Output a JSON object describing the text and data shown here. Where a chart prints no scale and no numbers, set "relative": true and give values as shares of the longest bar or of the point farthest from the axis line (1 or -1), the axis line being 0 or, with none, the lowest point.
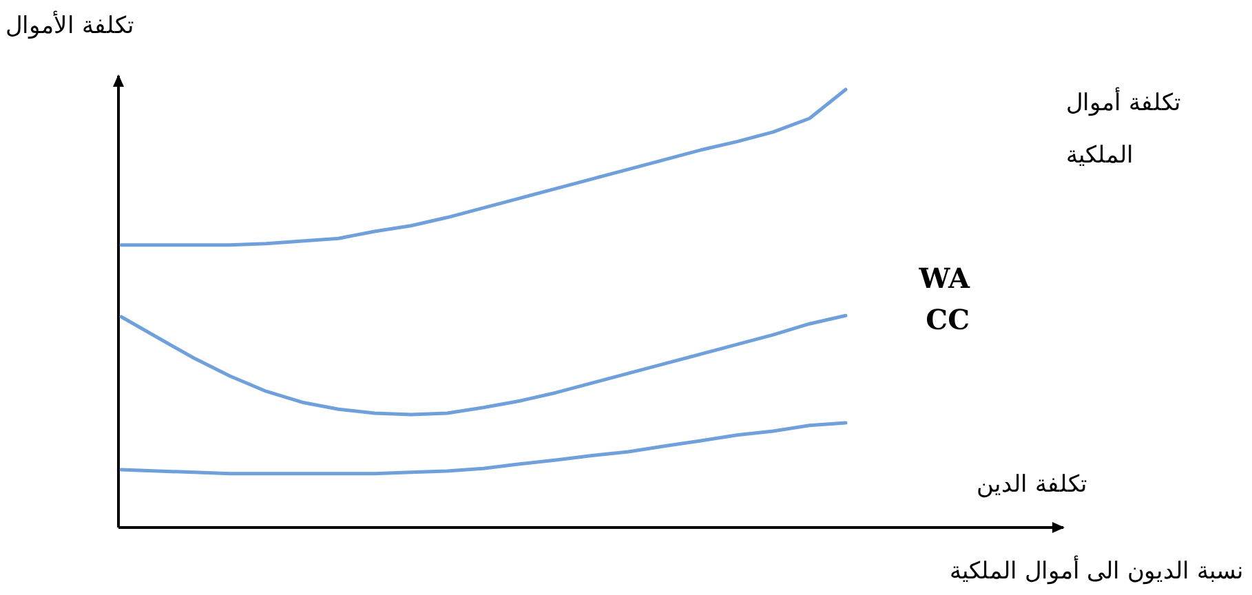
{
  "chart_data": {
    "type": "line",
    "relative": true,
    "ylabel": "تكلفة الأموال",
    "xlabel": "نسبة الديون الى أموال الملكية",
    "legend": false,
    "marker": "none",
    "line_style": "solid",
    "categories": [
      null,
      null,
      null,
      null,
      null,
      null,
      null,
      null,
      null,
      null,
      null,
      null,
      null,
      null,
      null,
      null,
      null,
      null,
      null,
      null,
      null
    ],
    "series": [
      {
        "name": "تكلفة أموال الملكية",
        "color": "#6fa0dc",
        "values": [
          0.645,
          0.645,
          0.645,
          0.645,
          0.648,
          0.654,
          0.66,
          0.676,
          0.689,
          0.708,
          0.73,
          0.752,
          0.774,
          0.796,
          0.818,
          0.84,
          0.862,
          0.881,
          0.903,
          0.934,
          1.0
        ]
      },
      {
        "name": "WACC",
        "color": "#6fa0dc",
        "values": [
          0.481,
          0.434,
          0.387,
          0.346,
          0.311,
          0.286,
          0.27,
          0.261,
          0.258,
          0.261,
          0.274,
          0.289,
          0.308,
          0.33,
          0.352,
          0.374,
          0.396,
          0.418,
          0.44,
          0.465,
          0.484
        ]
      },
      {
        "name": "تكلفة الدين",
        "color": "#6fa0dc",
        "values": [
          0.132,
          0.129,
          0.126,
          0.123,
          0.123,
          0.123,
          0.123,
          0.123,
          0.126,
          0.129,
          0.135,
          0.145,
          0.154,
          0.164,
          0.173,
          0.186,
          0.198,
          0.211,
          0.22,
          0.233,
          0.239
        ]
      }
    ]
  }
}
